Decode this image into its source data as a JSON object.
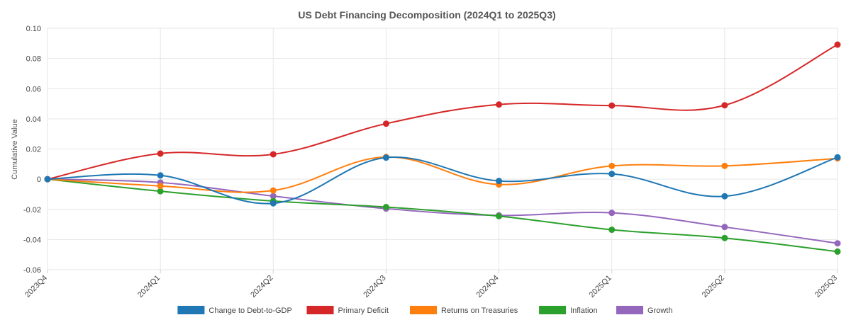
{
  "chart_data": {
    "type": "line",
    "title": "US Debt Financing Decomposition (2024Q1 to 2025Q3)",
    "xlabel": "",
    "ylabel": "Cumulative Value",
    "categories": [
      "2023Q4",
      "2024Q1",
      "2024Q2",
      "2024Q3",
      "2024Q4",
      "2025Q1",
      "2025Q2",
      "2025Q3"
    ],
    "ylim": [
      -0.06,
      0.1
    ],
    "yticks": [
      "0.10",
      "0.08",
      "0.06",
      "0.04",
      "0.02",
      "0",
      "-0.02",
      "-0.04",
      "-0.06"
    ],
    "ytick_values": [
      0.1,
      0.08,
      0.06,
      0.04,
      0.02,
      0,
      -0.02,
      -0.04,
      -0.06
    ],
    "grid": true,
    "legend_position": "bottom",
    "series": [
      {
        "name": "Change to Debt-to-GDP",
        "color": "#1f77b4",
        "values": [
          0,
          0.0025,
          -0.016,
          0.0143,
          -0.0012,
          0.0035,
          -0.0113,
          0.0145
        ]
      },
      {
        "name": "Primary Deficit",
        "color": "#d62728",
        "values": [
          0,
          0.017,
          0.0165,
          0.0368,
          0.0495,
          0.0488,
          0.049,
          0.0892
        ]
      },
      {
        "name": "Returns on Treasuries",
        "color": "#ff7f0e",
        "values": [
          0,
          -0.0045,
          -0.0075,
          0.0147,
          -0.0035,
          0.0088,
          0.0088,
          0.0138
        ]
      },
      {
        "name": "Inflation",
        "color": "#2ca02c",
        "values": [
          0,
          -0.008,
          -0.0145,
          -0.0185,
          -0.0245,
          -0.0335,
          -0.039,
          -0.048
        ]
      },
      {
        "name": "Growth",
        "color": "#9467bd",
        "values": [
          0,
          -0.0022,
          -0.0112,
          -0.0195,
          -0.024,
          -0.0223,
          -0.0317,
          -0.0425
        ]
      }
    ]
  }
}
